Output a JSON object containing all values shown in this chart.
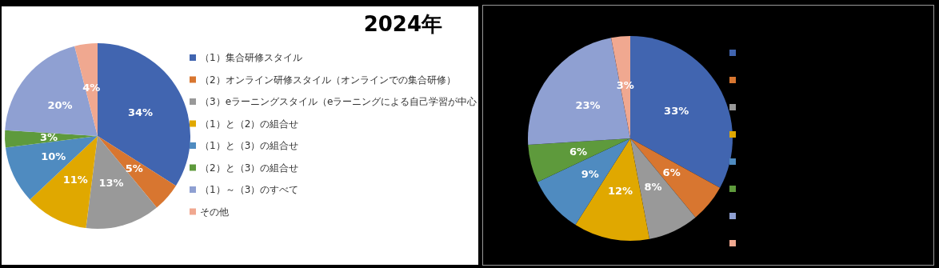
{
  "chart_data": [
    {
      "type": "pie",
      "title": "2024年",
      "categories": [
        "（1）集合研修スタイル",
        "（2）オンライン研修スタイル（オンラインでの集合研修）",
        "（3）eラーニングスタイル（eラーニングによる自己学習が中心）",
        "（1）と（2）の組合せ",
        "（1）と（3）の組合せ",
        "（2）と（3）の組合せ",
        "（1）～（3）のすべて",
        "その他"
      ],
      "values": [
        34,
        5,
        13,
        11,
        10,
        3,
        20,
        4
      ],
      "value_labels": [
        "34%",
        "5%",
        "13%",
        "11%",
        "10%",
        "3%",
        "20%",
        "4%"
      ],
      "colors": [
        "#4165b0",
        "#d87630",
        "#999999",
        "#e0a800",
        "#4f8bc0",
        "#5e9a3c",
        "#8fa0d2",
        "#f0a890"
      ],
      "legend": "right"
    },
    {
      "type": "pie",
      "categories": [
        null,
        null,
        null,
        null,
        null,
        null,
        null,
        null
      ],
      "values": [
        33,
        6,
        8,
        12,
        9,
        6,
        23,
        3
      ],
      "value_labels": [
        "33%",
        "6%",
        "8%",
        "12%",
        "9%",
        "6%",
        "23%",
        "3%"
      ],
      "colors": [
        "#4165b0",
        "#d87630",
        "#999999",
        "#e0a800",
        "#4f8bc0",
        "#5e9a3c",
        "#8fa0d2",
        "#f0a890"
      ]
    }
  ]
}
